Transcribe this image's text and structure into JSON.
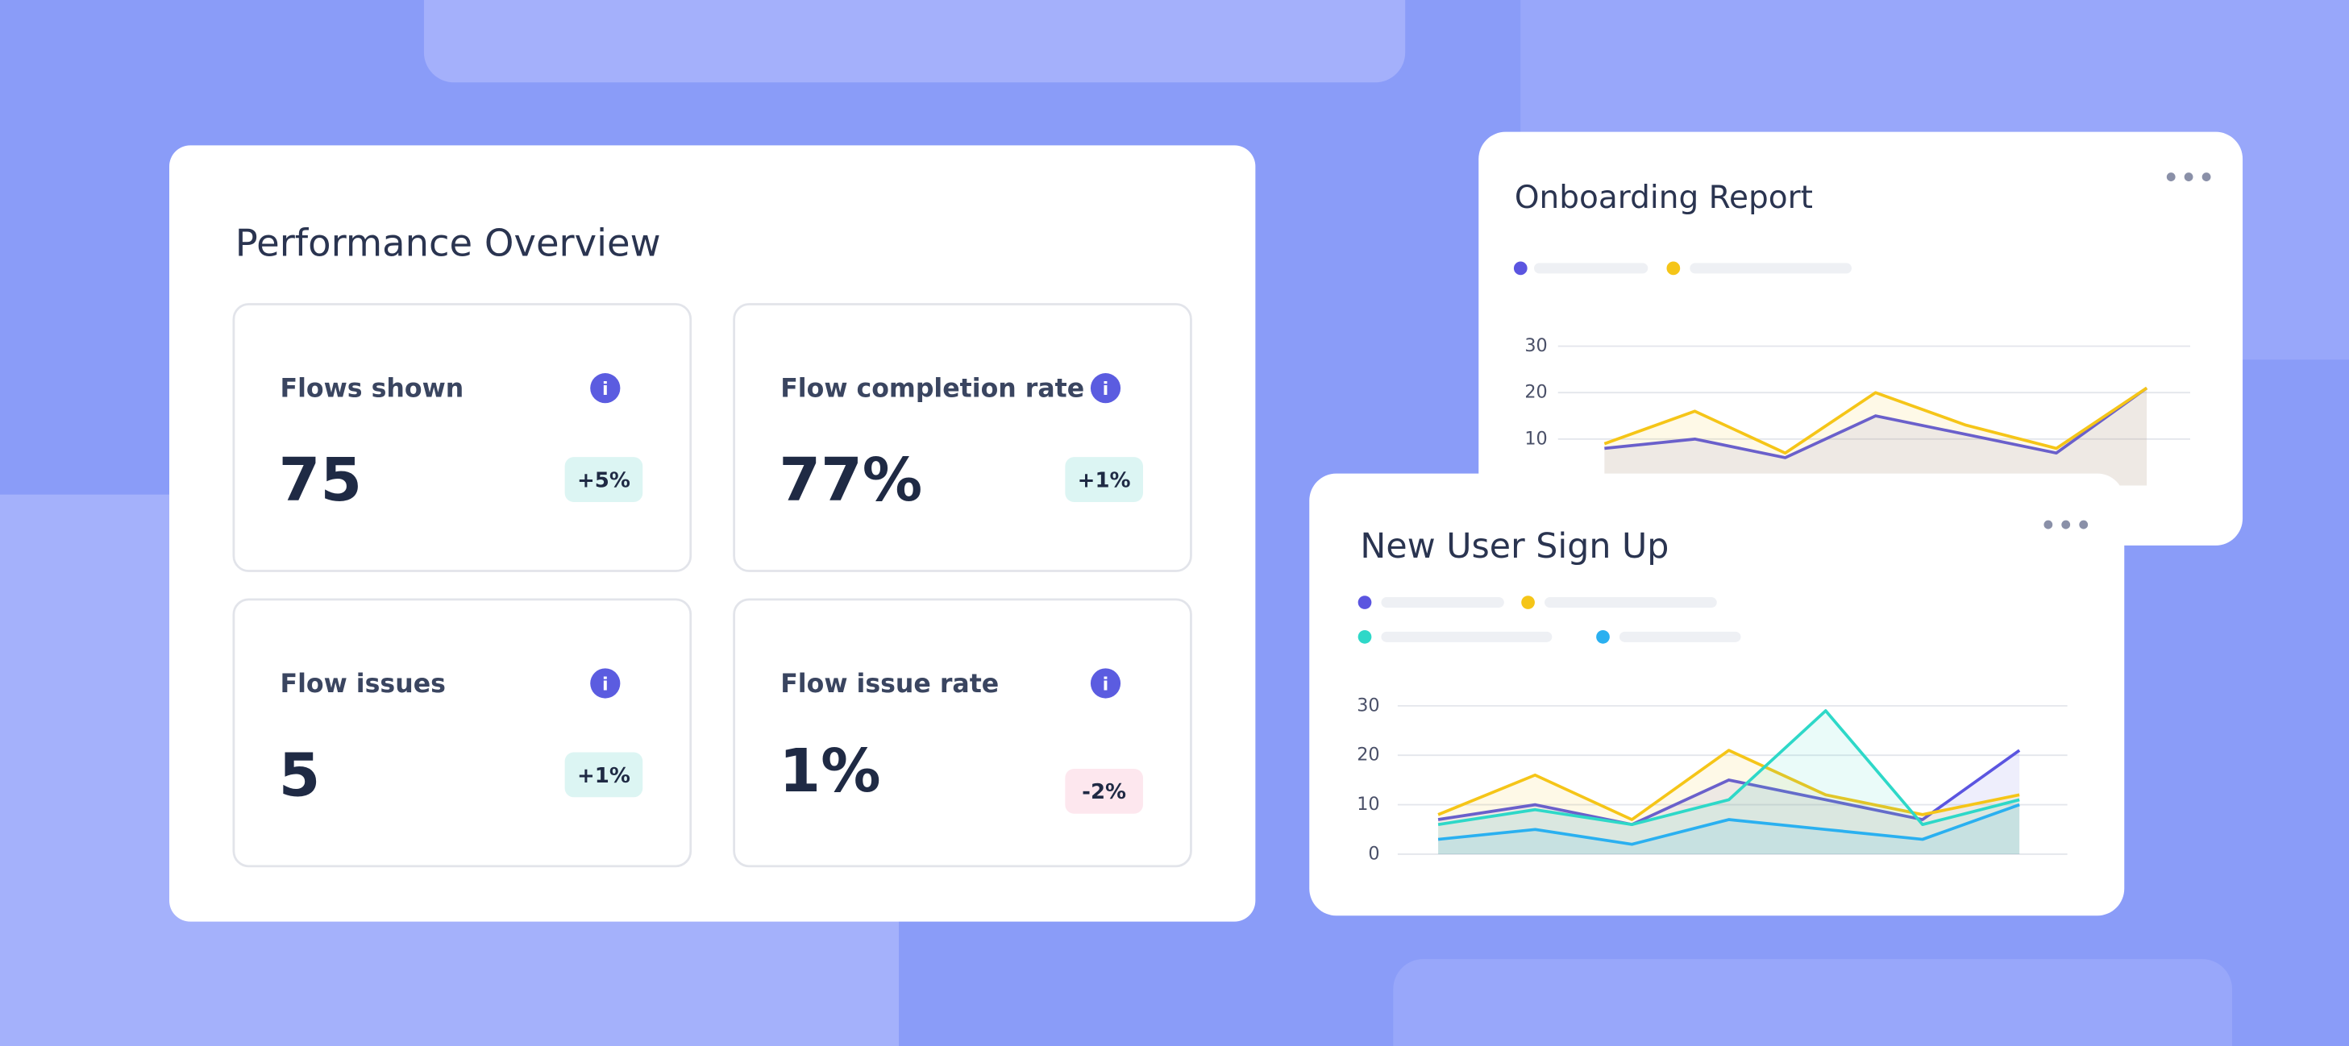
{
  "performance": {
    "title": "Performance Overview",
    "cards": [
      {
        "label": "Flows shown",
        "value": "75",
        "change": "+5%"
      },
      {
        "label": "Flow completion rate",
        "value": "77%",
        "change": "+1%"
      },
      {
        "label": "Flow issues",
        "value": "5",
        "change": "+1%"
      },
      {
        "label": "Flow issue rate",
        "value": "1%",
        "change": "-2%"
      }
    ]
  },
  "chart_data": [
    {
      "type": "line",
      "title": "Onboarding Report",
      "categories": [
        null,
        null,
        null,
        null,
        null,
        null,
        null
      ],
      "ylim": [
        0,
        30
      ],
      "yticks": [
        10,
        20,
        30
      ],
      "grid": true,
      "series": [
        {
          "color": "#5b55e0",
          "values": [
            8,
            10,
            6,
            15,
            11,
            7,
            21
          ]
        },
        {
          "color": "#f5c518",
          "values": [
            9,
            16,
            7,
            20,
            13,
            8,
            21
          ]
        }
      ]
    },
    {
      "type": "line",
      "title": "New User Sign Up",
      "categories": [
        null,
        null,
        null,
        null,
        null,
        null,
        null
      ],
      "ylim": [
        0,
        30
      ],
      "yticks": [
        0,
        10,
        20,
        30
      ],
      "grid": true,
      "series": [
        {
          "color": "#5b55e0",
          "values": [
            7,
            10,
            6,
            15,
            11,
            7,
            21
          ]
        },
        {
          "color": "#f5c518",
          "values": [
            8,
            16,
            7,
            21,
            12,
            8,
            12
          ]
        },
        {
          "color": "#2ed8c8",
          "values": [
            6,
            9,
            6,
            11,
            29,
            6,
            11
          ]
        },
        {
          "color": "#2ab0f0",
          "values": [
            3,
            5,
            2,
            7,
            5,
            3,
            10
          ]
        }
      ]
    }
  ]
}
